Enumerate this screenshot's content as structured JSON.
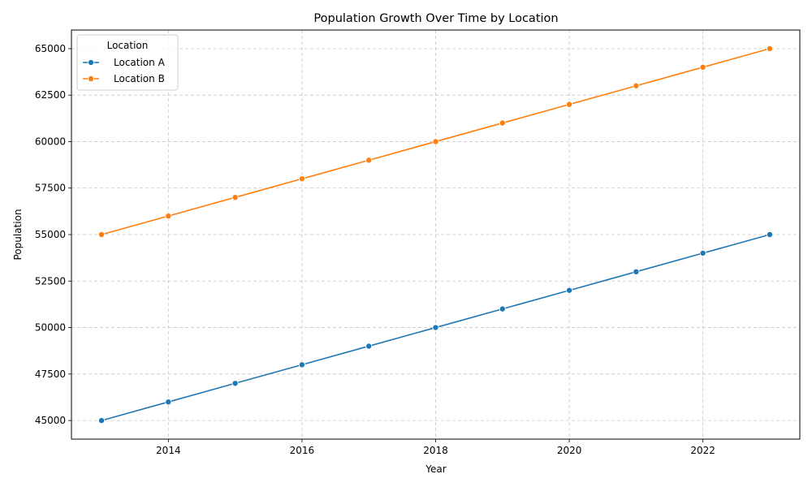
{
  "chart_data": {
    "type": "line",
    "title": "Population Growth Over Time by Location",
    "xlabel": "Year",
    "ylabel": "Population",
    "x": [
      2013,
      2014,
      2015,
      2016,
      2017,
      2018,
      2019,
      2020,
      2021,
      2022,
      2023
    ],
    "xlim": [
      2012.55,
      2023.45
    ],
    "ylim": [
      44000,
      66000
    ],
    "xticks": [
      2014,
      2016,
      2018,
      2020,
      2022
    ],
    "yticks": [
      45000,
      47500,
      50000,
      52500,
      55000,
      57500,
      60000,
      62500,
      65000
    ],
    "grid": true,
    "legend": {
      "title": "Location",
      "placement": "top-left"
    },
    "series": [
      {
        "name": "Location A",
        "color": "#1f77b4",
        "marker": "circle",
        "values": [
          45000,
          46000,
          47000,
          48000,
          49000,
          50000,
          51000,
          52000,
          53000,
          54000,
          55000
        ]
      },
      {
        "name": "Location B",
        "color": "#ff7f0e",
        "marker": "circle",
        "values": [
          55000,
          56000,
          57000,
          58000,
          59000,
          60000,
          61000,
          62000,
          63000,
          64000,
          65000
        ]
      }
    ]
  }
}
